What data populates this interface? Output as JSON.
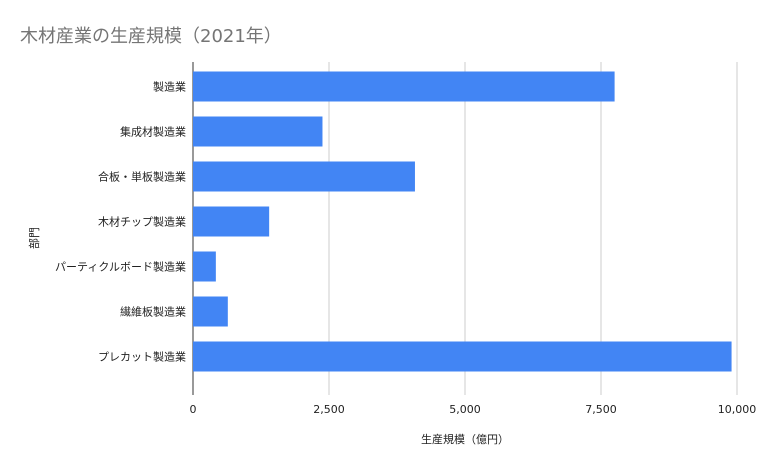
{
  "chart_data": {
    "type": "bar",
    "orientation": "horizontal",
    "title": "木材産業の生産規模（2021年）",
    "xlabel": "生産規模（億円）",
    "ylabel": "部門",
    "categories": [
      "製造業",
      "集成材製造業",
      "合板・単板製造業",
      "木材チップ製造業",
      "パーティクルボード製造業",
      "繊維板製造業",
      "プレカット製造業"
    ],
    "values": [
      7750,
      2380,
      4080,
      1400,
      420,
      640,
      9900
    ],
    "xlim": [
      0,
      10000
    ],
    "xticks": [
      0,
      2500,
      5000,
      7500,
      10000
    ],
    "xtick_labels": [
      "0",
      "2,500",
      "5,000",
      "7,500",
      "10,000"
    ],
    "bar_color": "#4285f4",
    "grid": true,
    "legend": "none"
  }
}
